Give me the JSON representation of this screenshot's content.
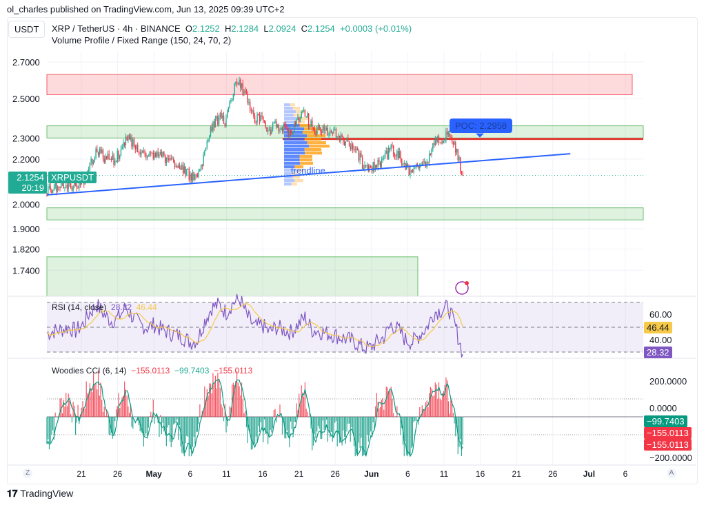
{
  "header": {
    "publisher": "ol_charles published on TradingView.com, Jun 13, 2025 09:39 UTC+2",
    "currency": "USDT",
    "symbol": "XRP / TetherUS · 4h · BINANCE",
    "o_label": "O",
    "o": "2.1252",
    "h_label": "H",
    "h": "2.1284",
    "l_label": "L",
    "l": "2.0924",
    "c_label": "C",
    "c": "2.1254",
    "change": "+0.0003 (+0.01%)",
    "indicator": "Volume Profile / Fixed Range (150, 24, 70, 2)"
  },
  "price_tag": {
    "price": "2.1254",
    "countdown": "20:19",
    "symbol": "XRPUSDT"
  },
  "poc_label": "POC: 2.2958",
  "trendline_label": "trendline",
  "rsi": {
    "legend": "RSI (14, close)",
    "value": "28.32",
    "ma_value": "46.44",
    "ticks": [
      "60.00",
      "40.00"
    ]
  },
  "cci": {
    "legend": "Woodies CCI (6, 14)",
    "v1": "−155.0113",
    "v2": "−99.7403",
    "v3": "−155.0113",
    "ticks": [
      "200.0000",
      "0.0000",
      "−200.0000"
    ],
    "tag_green": "−99.7403",
    "tag_red1": "−155.0113",
    "tag_red2": "−155.0113"
  },
  "time_axis": {
    "labels": [
      "21",
      "26",
      "May",
      "6",
      "11",
      "16",
      "21",
      "26",
      "Jun",
      "6",
      "11",
      "16",
      "21",
      "26",
      "Jul",
      "6"
    ],
    "left_button": "Z",
    "right_button": "A"
  },
  "brand": "TradingView",
  "colors": {
    "up": "#22ab94",
    "down": "#f23645",
    "trendline": "#2962ff",
    "rsi": "#7e57c2",
    "rsi_ma": "#f7c948",
    "poc": "#2962ff",
    "red_line": "#e53935"
  },
  "chart_data": {
    "type": "candlestick",
    "price_axis": {
      "ticks": [
        "2.7000",
        "2.5000",
        "2.3000",
        "2.2000",
        "2.0000",
        "1.9000",
        "1.8200",
        "1.7400"
      ],
      "scale": "log"
    },
    "start_date": "2025-04-16",
    "interval": "1d",
    "closes": [
      2.05,
      2.07,
      2.08,
      2.08,
      2.07,
      2.09,
      2.18,
      2.24,
      2.21,
      2.19,
      2.22,
      2.3,
      2.27,
      2.24,
      2.22,
      2.23,
      2.21,
      2.2,
      2.18,
      2.16,
      2.12,
      2.13,
      2.22,
      2.35,
      2.4,
      2.38,
      2.55,
      2.58,
      2.5,
      2.4,
      2.38,
      2.33,
      2.36,
      2.34,
      2.33,
      2.38,
      2.42,
      2.35,
      2.34,
      2.33,
      2.32,
      2.3,
      2.28,
      2.25,
      2.18,
      2.16,
      2.18,
      2.2,
      2.24,
      2.22,
      2.16,
      2.14,
      2.17,
      2.19,
      2.28,
      2.3,
      2.31,
      2.24,
      2.1254
    ],
    "zones": [
      {
        "kind": "resistance",
        "from": 2.52,
        "to": 2.63,
        "color": "#f23645"
      },
      {
        "kind": "support",
        "from": 2.3,
        "to": 2.36,
        "color": "#4caf50"
      },
      {
        "kind": "support",
        "from": 1.935,
        "to": 1.985,
        "color": "#4caf50"
      },
      {
        "kind": "support",
        "from": 1.6,
        "to": 1.79,
        "color": "#4caf50"
      }
    ],
    "poc": 2.2958,
    "trendline": {
      "from": [
        "2025-04-16",
        2.04
      ],
      "to": [
        "2025-06-28",
        2.225
      ]
    },
    "rsi": [
      45,
      47,
      48,
      50,
      47,
      52,
      62,
      68,
      60,
      55,
      58,
      66,
      58,
      52,
      50,
      52,
      48,
      46,
      44,
      42,
      38,
      40,
      55,
      66,
      68,
      62,
      70,
      72,
      58,
      50,
      52,
      46,
      50,
      48,
      46,
      52,
      58,
      48,
      47,
      45,
      44,
      42,
      40,
      38,
      34,
      33,
      38,
      42,
      52,
      48,
      40,
      38,
      44,
      50,
      62,
      64,
      66,
      50,
      28.32
    ],
    "rsi_bands": [
      30,
      50,
      70
    ],
    "cci": [
      -150,
      -60,
      80,
      120,
      -40,
      60,
      180,
      220,
      40,
      -80,
      60,
      160,
      -30,
      -120,
      -60,
      40,
      -90,
      -110,
      -60,
      -140,
      -180,
      -40,
      150,
      210,
      170,
      -20,
      200,
      180,
      -140,
      -200,
      -60,
      -150,
      40,
      -60,
      -100,
      80,
      140,
      -120,
      -40,
      -80,
      -60,
      -120,
      -100,
      -160,
      -200,
      -150,
      60,
      100,
      150,
      -40,
      -200,
      -140,
      60,
      80,
      200,
      160,
      140,
      -120,
      -155.0113
    ]
  }
}
